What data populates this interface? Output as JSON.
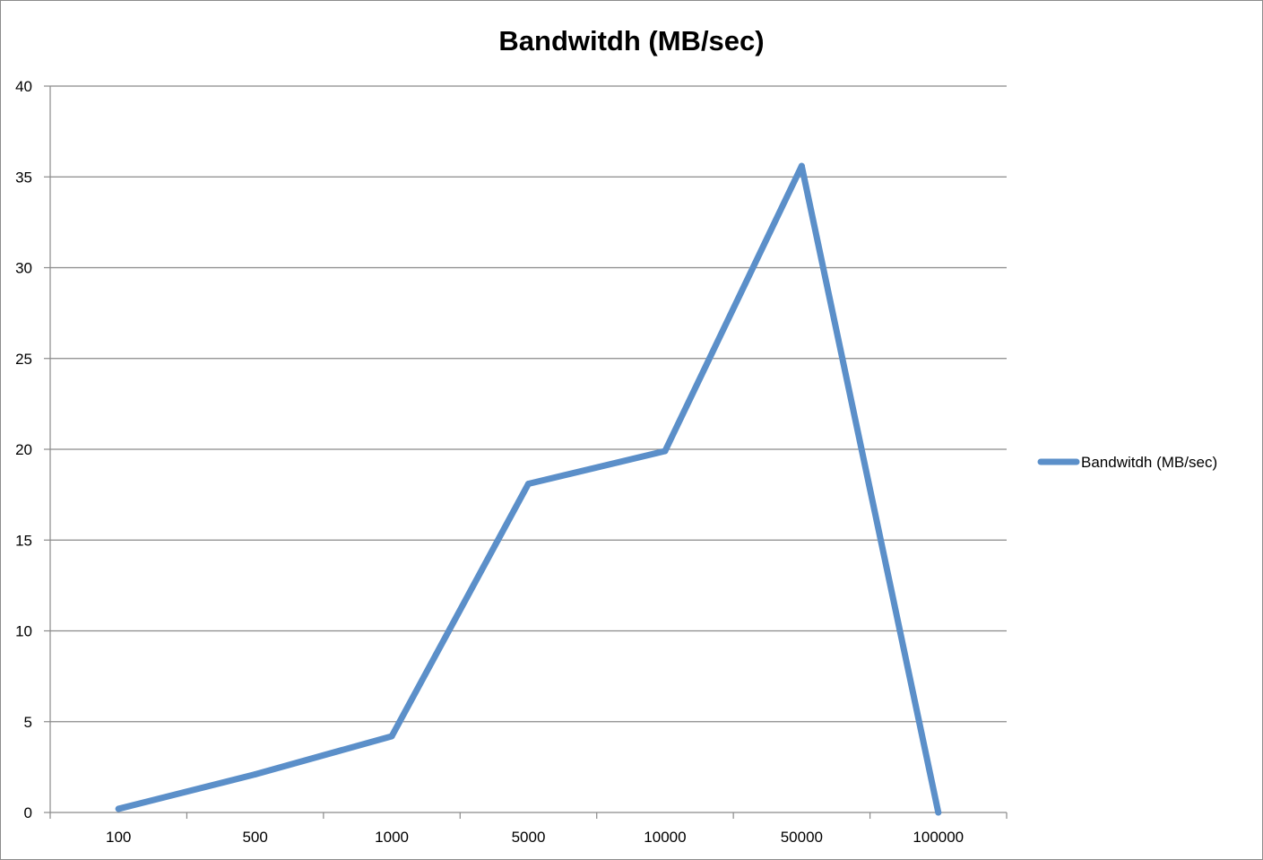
{
  "chart_data": {
    "type": "line",
    "title": "Bandwitdh (MB/sec)",
    "xlabel": "",
    "ylabel": "",
    "categories": [
      "100",
      "500",
      "1000",
      "5000",
      "10000",
      "50000",
      "100000"
    ],
    "series": [
      {
        "name": "Bandwitdh (MB/sec)",
        "values": [
          0.2,
          2.1,
          4.2,
          18.1,
          19.9,
          35.6,
          0
        ],
        "color": "#5b8fc9"
      }
    ],
    "yticks": [
      "0",
      "5",
      "10",
      "15",
      "20",
      "25",
      "30",
      "35",
      "40"
    ],
    "ylim": [
      0,
      40
    ],
    "grid": true,
    "legend_position": "right"
  }
}
